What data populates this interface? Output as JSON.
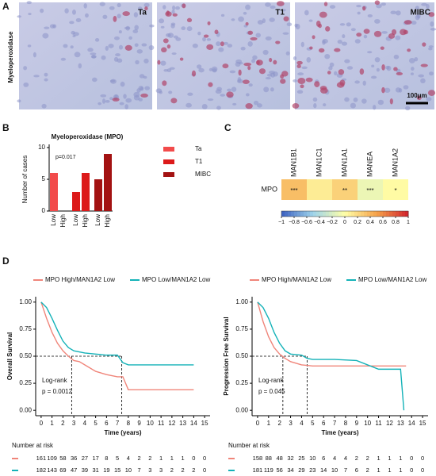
{
  "panels": [
    "A",
    "B",
    "C",
    "D"
  ],
  "images": {
    "row_label": "Myeloperoxidase",
    "labels": [
      "Ta",
      "T1",
      "MIBC"
    ],
    "scale_bar": "100μm"
  },
  "chart_data": [
    {
      "type": "bar",
      "title": "Myeloperoxidase (MPO)",
      "y_label": "Number of cases",
      "categories": [
        "Low",
        "High",
        "Low",
        "High",
        "Low",
        "High"
      ],
      "groups": [
        {
          "name": "Ta",
          "color": "#f24b4b"
        },
        {
          "name": "T1",
          "color": "#dc1a1a"
        },
        {
          "name": "MIBC",
          "color": "#a31212"
        }
      ],
      "values": [
        6,
        0,
        3,
        6,
        5,
        9
      ],
      "group_of": [
        0,
        0,
        1,
        1,
        2,
        2
      ],
      "ylim": [
        0,
        10
      ],
      "yticks": [
        0,
        5,
        10
      ],
      "annotation": "p=0.017"
    },
    {
      "type": "heatmap",
      "rows": [
        "MPO"
      ],
      "columns": [
        "MAN1B1",
        "MAN1C1",
        "MAN1A1",
        "MANEA",
        "MAN1A2"
      ],
      "values": [
        [
          0.35,
          0.1,
          0.25,
          -0.1,
          0.02
        ]
      ],
      "stars": [
        [
          "***",
          null,
          "**",
          "***",
          "*"
        ]
      ],
      "colorscale": [
        "#3b5fc0",
        "#9fd4ea",
        "#ffffa8",
        "#f5a24a",
        "#d1222c"
      ],
      "clim": [
        -1,
        1
      ],
      "cticks": [
        {
          "value": -1,
          "label": "−1"
        },
        {
          "value": -0.8,
          "label": "−0.8"
        },
        {
          "value": -0.6,
          "label": "−0.6"
        },
        {
          "value": -0.4,
          "label": "−0.4"
        },
        {
          "value": -0.2,
          "label": "−0.2"
        },
        0,
        0.2,
        0.4,
        0.6,
        0.8,
        1
      ]
    },
    {
      "type": "line",
      "y_label": "Overall Survival",
      "x_label": "Time (years)",
      "annotation": "Log-rank",
      "p_label": "p = 0.0012",
      "series": [
        {
          "name": "MPO High/MAN1A2 Low",
          "color": "#f0857a",
          "x": [
            0,
            0.5,
            1,
            1.5,
            2,
            2.5,
            3,
            3.5,
            4,
            5,
            6,
            7,
            7.5,
            8,
            14
          ],
          "values": [
            1,
            0.85,
            0.72,
            0.62,
            0.55,
            0.5,
            0.46,
            0.45,
            0.42,
            0.36,
            0.33,
            0.31,
            0.31,
            0.19,
            0.19
          ]
        },
        {
          "name": "MPO Low/MAN1A2 Low",
          "color": "#14b2b8",
          "x": [
            0,
            0.5,
            1,
            1.5,
            2,
            2.5,
            3,
            4,
            5,
            6,
            7,
            7.5,
            8,
            9,
            14
          ],
          "values": [
            1,
            0.95,
            0.85,
            0.74,
            0.64,
            0.58,
            0.55,
            0.53,
            0.52,
            0.51,
            0.51,
            0.44,
            0.42,
            0.42,
            0.42
          ]
        }
      ],
      "medians": [
        2.8,
        7.4
      ],
      "xlim": [
        -0.5,
        15.5
      ],
      "xticks": [
        0,
        1,
        2,
        3,
        4,
        5,
        6,
        7,
        8,
        9,
        10,
        11,
        12,
        13,
        14,
        15
      ],
      "ylim": [
        -0.05,
        1.05
      ],
      "yticks": [
        {
          "value": 0,
          "label": "0.00"
        },
        {
          "value": 0.25,
          "label": "0.25"
        },
        {
          "value": 0.5,
          "label": "0.50"
        },
        {
          "value": 0.75,
          "label": "0.75"
        },
        {
          "value": 1,
          "label": "1.00"
        }
      ],
      "risk_title": "Number at risk",
      "risk": [
        [
          161,
          109,
          58,
          36,
          27,
          17,
          8,
          5,
          4,
          2,
          2,
          1,
          1,
          1,
          0,
          0
        ],
        [
          182,
          143,
          69,
          47,
          39,
          31,
          19,
          15,
          10,
          7,
          3,
          3,
          2,
          2,
          2,
          0
        ]
      ]
    },
    {
      "type": "line",
      "y_label": "Progression Free Survival",
      "x_label": "Time (years)",
      "annotation": "Log-rank",
      "p_label": "p = 0.045",
      "series": [
        {
          "name": "MPO High/MAN1A2 Low",
          "color": "#f0857a",
          "x": [
            0,
            0.5,
            1,
            1.5,
            2,
            2.5,
            3,
            4,
            5,
            7,
            10,
            13.5
          ],
          "values": [
            1,
            0.82,
            0.68,
            0.58,
            0.52,
            0.48,
            0.45,
            0.42,
            0.41,
            0.41,
            0.41,
            0.41
          ]
        },
        {
          "name": "MPO Low/MAN1A2 Low",
          "color": "#14b2b8",
          "x": [
            0,
            0.5,
            1,
            1.5,
            2,
            2.5,
            3,
            4,
            4.5,
            5,
            7,
            9,
            11,
            13,
            13.3
          ],
          "values": [
            1,
            0.95,
            0.85,
            0.72,
            0.62,
            0.55,
            0.52,
            0.51,
            0.48,
            0.47,
            0.47,
            0.46,
            0.38,
            0.38,
            0
          ]
        }
      ],
      "medians": [
        2.3,
        4.5
      ],
      "xlim": [
        -0.5,
        15.5
      ],
      "xticks": [
        0,
        1,
        2,
        3,
        4,
        5,
        6,
        7,
        8,
        9,
        10,
        11,
        12,
        13,
        14,
        15
      ],
      "ylim": [
        -0.05,
        1.05
      ],
      "yticks": [
        {
          "value": 0,
          "label": "0.00"
        },
        {
          "value": 0.25,
          "label": "0.25"
        },
        {
          "value": 0.5,
          "label": "0.50"
        },
        {
          "value": 0.75,
          "label": "0.75"
        },
        {
          "value": 1,
          "label": "1.00"
        }
      ],
      "risk_title": "Number at risk",
      "risk": [
        [
          158,
          88,
          48,
          32,
          25,
          10,
          6,
          4,
          4,
          2,
          2,
          1,
          1,
          1,
          0,
          0
        ],
        [
          181,
          119,
          56,
          34,
          29,
          23,
          14,
          10,
          7,
          6,
          2,
          1,
          1,
          1,
          0,
          0
        ]
      ]
    }
  ]
}
